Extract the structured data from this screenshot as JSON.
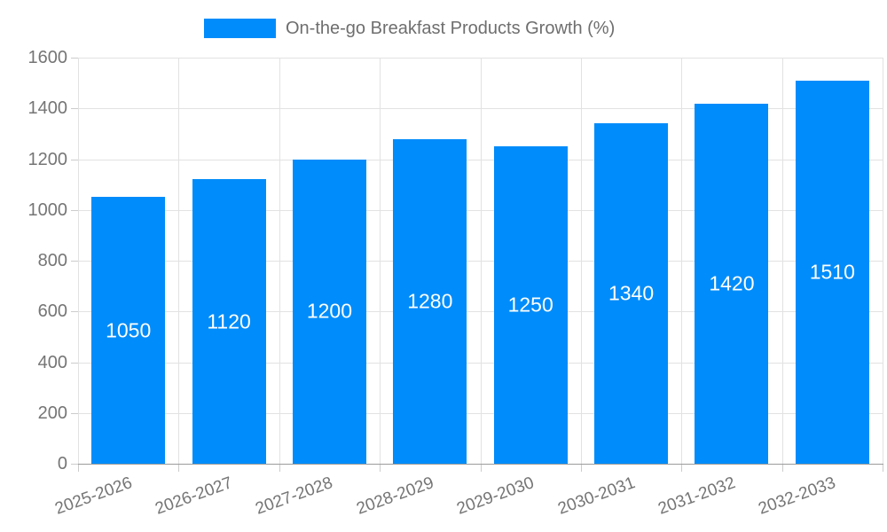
{
  "legend": {
    "label": "On-the-go Breakfast Products Growth (%)",
    "swatch_color": "#008CFA"
  },
  "chart_data": {
    "type": "bar",
    "title": "",
    "xlabel": "",
    "ylabel": "",
    "categories": [
      "2025-2026",
      "2026-2027",
      "2027-2028",
      "2028-2029",
      "2029-2030",
      "2030-2031",
      "2031-2032",
      "2032-2033"
    ],
    "values": [
      1050,
      1120,
      1200,
      1280,
      1250,
      1340,
      1420,
      1510
    ],
    "value_labels": [
      "1050",
      "1120",
      "1200",
      "1280",
      "1250",
      "1340",
      "1420",
      "1510"
    ],
    "ylim": [
      0,
      1600
    ],
    "yticks": [
      0,
      200,
      400,
      600,
      800,
      1000,
      1200,
      1400,
      1600
    ],
    "grid": true,
    "legend_position": "top",
    "x_label_rotation_deg": -20
  },
  "style": {
    "bar_color": "#008CFA",
    "value_label_color": "#ffffff",
    "grid_color": "#e2e2e2",
    "axis_color": "#9b9b9b",
    "tick_color": "#cccccc",
    "label_color": "#757575",
    "background": "#ffffff"
  }
}
